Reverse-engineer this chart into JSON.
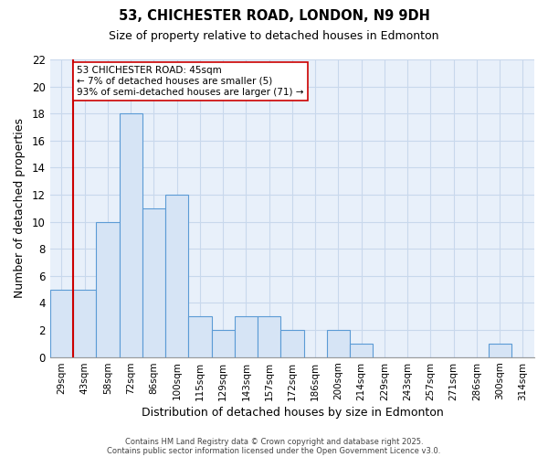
{
  "title": "53, CHICHESTER ROAD, LONDON, N9 9DH",
  "subtitle": "Size of property relative to detached houses in Edmonton",
  "xlabel": "Distribution of detached houses by size in Edmonton",
  "ylabel": "Number of detached properties",
  "bar_labels": [
    "29sqm",
    "43sqm",
    "58sqm",
    "72sqm",
    "86sqm",
    "100sqm",
    "115sqm",
    "129sqm",
    "143sqm",
    "157sqm",
    "172sqm",
    "186sqm",
    "200sqm",
    "214sqm",
    "229sqm",
    "243sqm",
    "257sqm",
    "271sqm",
    "286sqm",
    "300sqm",
    "314sqm"
  ],
  "bar_values": [
    5,
    5,
    10,
    18,
    11,
    12,
    3,
    2,
    3,
    3,
    2,
    0,
    2,
    1,
    0,
    0,
    0,
    0,
    0,
    1,
    0
  ],
  "bar_color": "#d6e4f5",
  "bar_edge_color": "#5b9bd5",
  "grid_color": "#c8d8ec",
  "ax_background": "#e8f0fa",
  "background_color": "#ffffff",
  "ylim": [
    0,
    22
  ],
  "yticks": [
    0,
    2,
    4,
    6,
    8,
    10,
    12,
    14,
    16,
    18,
    20,
    22
  ],
  "vline_x_index": 1,
  "vline_color": "#cc0000",
  "annotation_title": "53 CHICHESTER ROAD: 45sqm",
  "annotation_line1": "← 7% of detached houses are smaller (5)",
  "annotation_line2": "93% of semi-detached houses are larger (71) →",
  "footer1": "Contains HM Land Registry data © Crown copyright and database right 2025.",
  "footer2": "Contains public sector information licensed under the Open Government Licence v3.0."
}
